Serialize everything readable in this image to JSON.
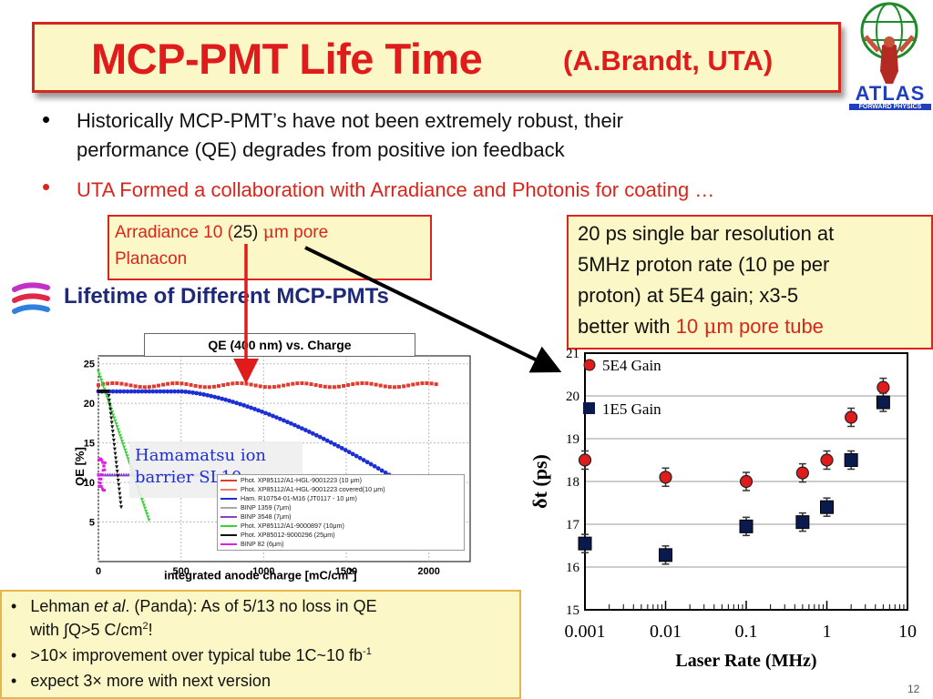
{
  "title": {
    "main": "MCP-PMT Life Time",
    "sub": "(A.Brandt, UTA)"
  },
  "logo": {
    "text": "ATLAS",
    "subtext": "FORWARD PHYSICS"
  },
  "bullets": [
    {
      "line1": "Historically MCP-PMT’s have not been extremely robust, their",
      "line2": "performance (QE) degrades from positive ion feedback",
      "color": "#111111"
    },
    {
      "line1": "UTA Formed a collaboration with Arradiance and Photonis for coating …",
      "line2": "",
      "color": "#d9261c"
    }
  ],
  "callout_arradiance": {
    "line1_a": "Arradiance 10  (",
    "line1_b": "25) ",
    "mu": "μ",
    "line1_c": "m pore",
    "line2": "Planacon"
  },
  "callout_resolution": {
    "line1": "20 ps single bar resolution at",
    "line2": "5MHz proton rate  (10 pe  per",
    "line3": "proton)  at 5E4 gain; x3-5",
    "line4_a": "better with ",
    "line4_b": "10 ",
    "mu": "μ",
    "line4_c": "m pore tube"
  },
  "left_figure": {
    "heading": "Lifetime of Different MCP-PMTs",
    "plot_title": "QE (400 nm)  vs.  Charge",
    "ylabel": "QE [%]",
    "xlabel_a": "integrated anode charge   [mC/cm",
    "xlabel_sup": "2",
    "xlabel_b": "]",
    "xticks": [
      "0",
      "500",
      "1000",
      "1500",
      "2000"
    ],
    "yticks": [
      "5",
      "10",
      "15",
      "20",
      "25"
    ],
    "hamamatsu_label_1": "Hamamatsu ion",
    "hamamatsu_label_2": "barrier SL10",
    "legend": [
      {
        "label": "Phot. XP85112/A1-HGL-9001223 (10 μm)",
        "color": "#e23b2e"
      },
      {
        "label": "Phot. XP85112/A1-HGL-9001223 covered(10 μm)",
        "color": "#f07a6a"
      },
      {
        "label": "Ham. R10754-01-M16 (JT0117 - 10 μm)",
        "color": "#1c2ed6"
      },
      {
        "label": "BINP 1359 (7μm)",
        "color": "#a8a8a8"
      },
      {
        "label": "BINP 3548 (7μm)",
        "color": "#8a3fd1"
      },
      {
        "label": "Phot. XP85112/A1-9000897 (10μm)",
        "color": "#3ccf3c"
      },
      {
        "label": "Phot. XP85012-9000296 (25μm)",
        "color": "#111111"
      },
      {
        "label": "BINP 82 (6μm)",
        "color": "#e020e0"
      }
    ]
  },
  "chart_data": {
    "type": "scatter",
    "title": "",
    "xlabel": "Laser Rate (MHz)",
    "ylabel": "δt (ps)",
    "xscale": "log",
    "xlim": [
      0.001,
      10
    ],
    "ylim": [
      15,
      21
    ],
    "xticks": [
      "0.001",
      "0.01",
      "0.1",
      "1",
      "10"
    ],
    "yticks": [
      "15",
      "16",
      "17",
      "18",
      "19",
      "20",
      "21"
    ],
    "grid": "horizontal",
    "legend_position": "top-left",
    "series": [
      {
        "name": "5E4 Gain",
        "marker": "circle",
        "color": "#e01b1b",
        "x": [
          0.001,
          0.01,
          0.1,
          0.5,
          1,
          2,
          5
        ],
        "y": [
          18.5,
          18.1,
          18.0,
          18.2,
          18.5,
          19.5,
          20.2
        ]
      },
      {
        "name": "1E5 Gain",
        "marker": "square",
        "color": "#0b1a4d",
        "x": [
          0.001,
          0.01,
          0.1,
          0.5,
          1,
          2,
          5
        ],
        "y": [
          16.55,
          16.28,
          16.95,
          17.05,
          17.4,
          18.5,
          19.85
        ]
      }
    ]
  },
  "bottom_box": {
    "item1_a": "Lehman ",
    "item1_b": "et al",
    "item1_c": ". (Panda): As of 5/13 no loss in QE",
    "item1_line2_a": "with ∫Q>5 C/cm",
    "item1_line2_sup": "2",
    "item1_line2_b": "!",
    "item2_a": " >10×  improvement over typical  tube  1C~10 fb",
    "item2_sup": "-1",
    "item3": "expect  3× more with next version"
  },
  "page_number": "12"
}
